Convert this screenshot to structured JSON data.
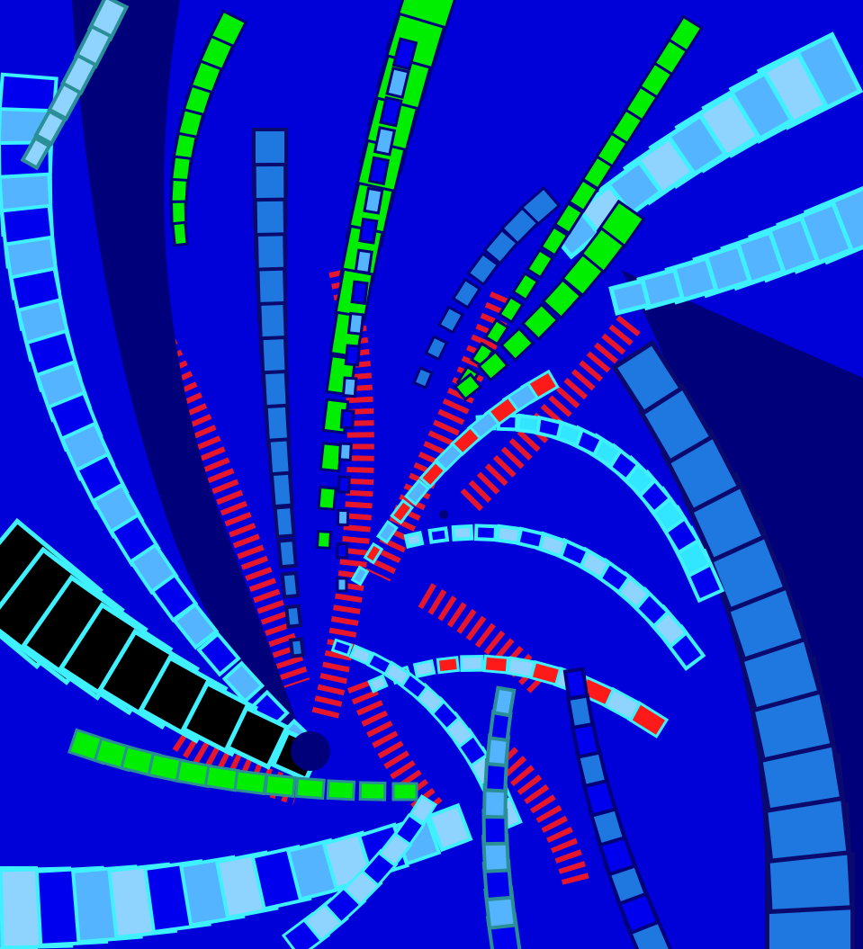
{
  "artwork": {
    "palette": {
      "background": "#0000d8",
      "red": "#ff1a1a",
      "green": "#00ee00",
      "navy": "#00007a",
      "deep_blue": "#0000ee",
      "steel_blue": "#1e78e0",
      "sky_blue": "#55b4ff",
      "light_blue": "#8fd3ff",
      "cyan": "#33e6ff",
      "teal": "#2a8f96",
      "black": "#000000",
      "outline_dark": "#0a0a6e",
      "outline_cyan": "#3ff0ff"
    }
  }
}
